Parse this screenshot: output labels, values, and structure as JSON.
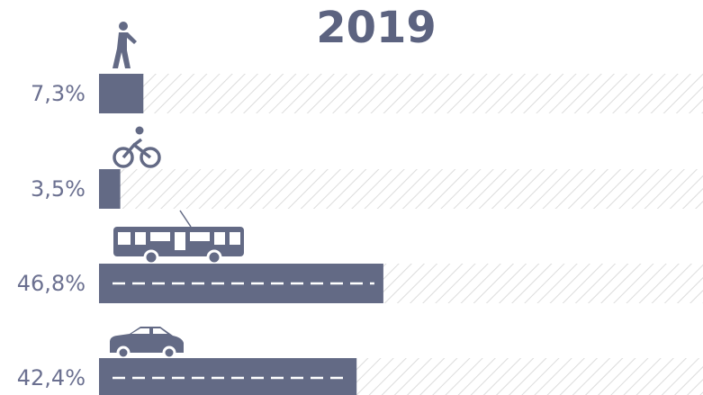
{
  "chart_data": {
    "type": "bar",
    "title": "2019",
    "categories": [
      null,
      null,
      null,
      null
    ],
    "values": [
      7.3,
      3.5,
      46.8,
      42.4
    ],
    "value_labels": [
      "7,3%",
      "3,5%",
      "46,8%",
      "42,4%"
    ],
    "color": "#636a85",
    "xlim": [
      0,
      100
    ]
  }
}
